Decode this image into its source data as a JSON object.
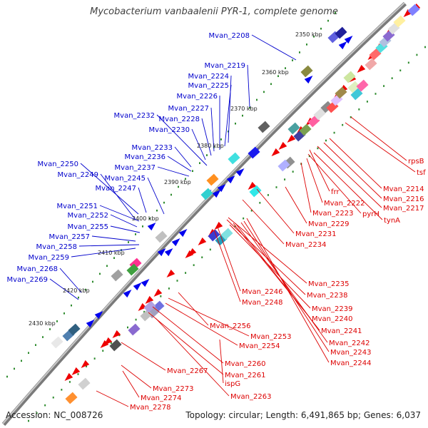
{
  "title": "Mycobacterium vanbaalenii PYR-1, complete genome",
  "footer": {
    "accession": "Accession: NC_008726",
    "topology": "Topology: circular; Length: 6,491,865 bp; Genes: 6,037"
  },
  "colors": {
    "forward_label": "#0000cc",
    "reverse_label": "#dd0000",
    "forward_gene": "#0000ee",
    "reverse_gene": "#ee0000",
    "backbone": "#888888",
    "tick_dots": "#2e8b2e"
  },
  "kbp_marks": [
    "2350 kbp",
    "2360 kbp",
    "2370 kbp",
    "2380 kbp",
    "2390 kbp",
    "2400 kbp",
    "2410 kbp",
    "2420 kbp",
    "2430 kbp"
  ],
  "forward_labels": [
    "Mvan_2208",
    "Mvan_2219",
    "Mvan_2224",
    "Mvan_2225",
    "Mvan_2226",
    "Mvan_2227",
    "Mvan_2228",
    "Mvan_2230",
    "Mvan_2232",
    "Mvan_2233",
    "Mvan_2236",
    "Mvan_2237",
    "Mvan_2245",
    "Mvan_2247",
    "Mvan_2250",
    "Mvan_2249",
    "Mvan_2251",
    "Mvan_2252",
    "Mvan_2255",
    "Mvan_2257",
    "Mvan_2258",
    "Mvan_2259",
    "Mvan_2268",
    "Mvan_2269"
  ],
  "reverse_labels": [
    "rpsB",
    "tsf",
    "Mvan_2214",
    "Mvan_2216",
    "Mvan_2217",
    "frr",
    "Mvan_2222",
    "Mvan_2223",
    "pyrH",
    "tynA",
    "Mvan_2229",
    "Mvan_2231",
    "Mvan_2234",
    "Mvan_2235",
    "Mvan_2238",
    "Mvan_2246",
    "Mvan_2248",
    "Mvan_2239",
    "Mvan_2240",
    "Mvan_2241",
    "Mvan_2242",
    "Mvan_2243",
    "Mvan_2244",
    "Mvan_2256",
    "Mvan_2253",
    "Mvan_2254",
    "Mvan_2260",
    "Mvan_2261",
    "Mvan_2267",
    "ispG",
    "Mvan_2263",
    "Mvan_2273",
    "Mvan_2274",
    "Mvan_2278"
  ]
}
